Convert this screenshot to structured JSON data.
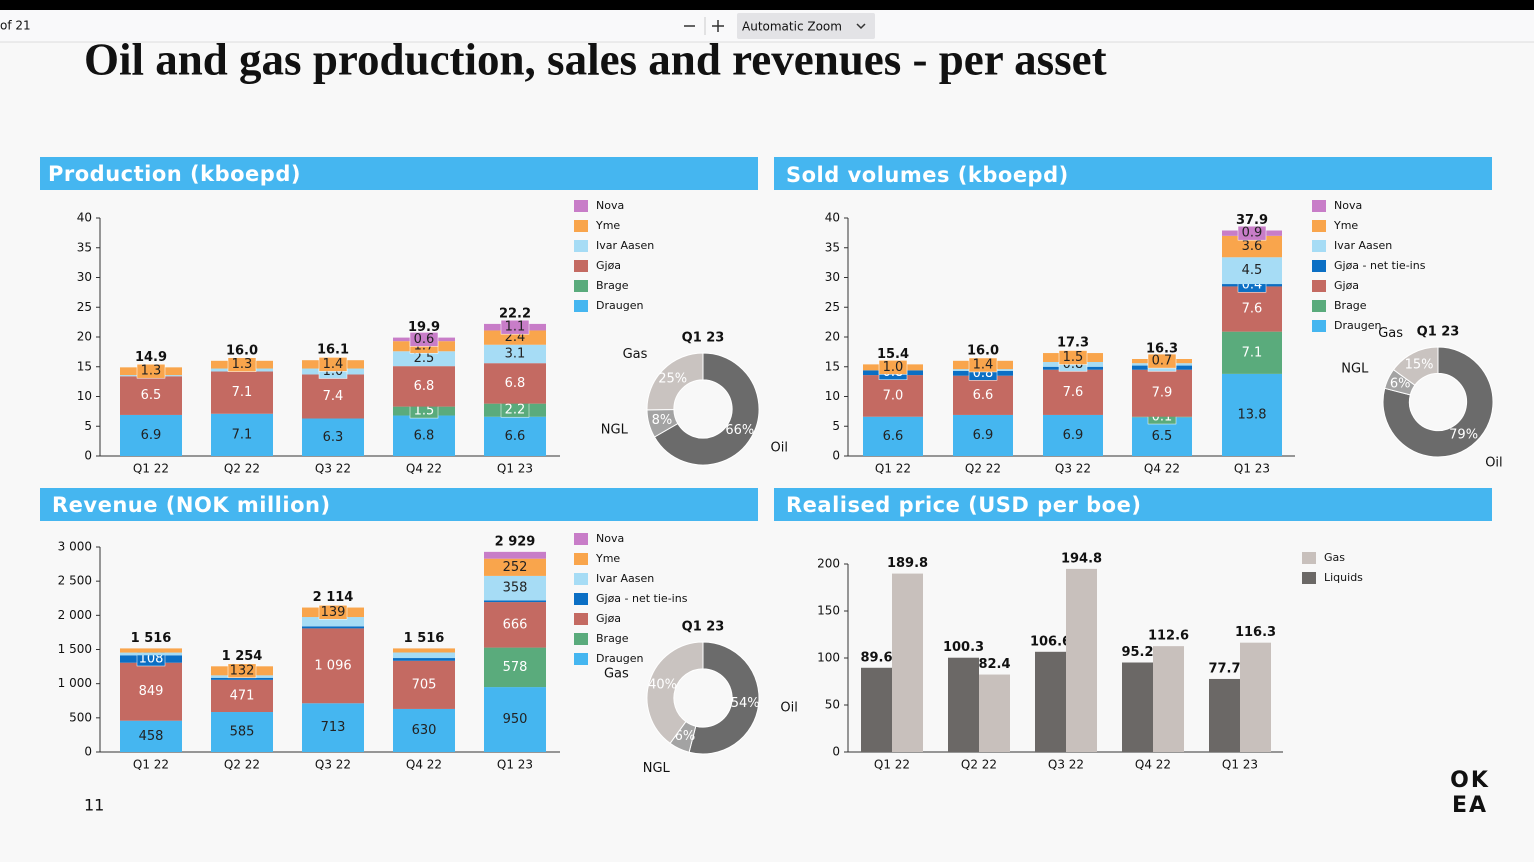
{
  "toolbar": {
    "page_of": "of 21",
    "zoom": "Automatic Zoom"
  },
  "slide": {
    "title": "Oil and gas production, sales and revenues - per asset",
    "page_number": "11",
    "logo_top": "OK",
    "logo_bottom": "EA"
  },
  "chart_data": [
    {
      "type": "stacked_bar",
      "title": "Production (kboepd)",
      "categories": [
        "Q1 22",
        "Q2 22",
        "Q3 22",
        "Q4 22",
        "Q1 23"
      ],
      "ylim": [
        0,
        40
      ],
      "yticks": [
        0,
        5,
        10,
        15,
        20,
        25,
        30,
        35,
        40
      ],
      "series": [
        {
          "name": "Draugen",
          "color": "#45b6f0",
          "values": [
            6.9,
            7.1,
            6.3,
            6.8,
            6.6
          ],
          "value_labels": [
            "6.9",
            "7.1",
            "6.3",
            "6.8",
            "6.6"
          ]
        },
        {
          "name": "Brage",
          "color": "#5aab7c",
          "values": [
            0,
            0,
            0,
            1.5,
            2.2
          ],
          "value_labels": [
            null,
            null,
            null,
            "1.5",
            "2.2"
          ]
        },
        {
          "name": "Gjøa",
          "color": "#c46a62",
          "values": [
            6.5,
            7.1,
            7.4,
            6.8,
            6.8
          ],
          "value_labels": [
            "6.5",
            "7.1",
            "7.4",
            "6.8",
            "6.8"
          ]
        },
        {
          "name": "Ivar Aasen",
          "color": "#a6dcf5",
          "values": [
            0.2,
            0.5,
            1.0,
            2.5,
            3.1
          ],
          "value_labels": [
            null,
            null,
            "1.0",
            "2.5",
            "3.1"
          ]
        },
        {
          "name": "Yme",
          "color": "#f9a54c",
          "values": [
            1.3,
            1.3,
            1.4,
            1.7,
            2.4
          ],
          "value_labels": [
            "1.3",
            "1.3",
            "1.4",
            "1.7",
            "2.4"
          ]
        },
        {
          "name": "Nova",
          "color": "#c87dc8",
          "values": [
            0,
            0,
            0,
            0.6,
            1.1
          ],
          "value_labels": [
            null,
            null,
            null,
            "0.6",
            "1.1"
          ]
        }
      ],
      "totals": [
        14.9,
        16.0,
        16.1,
        19.9,
        22.2
      ],
      "total_labels": [
        "14.9",
        "16.0",
        "16.1",
        "19.9",
        "22.2"
      ]
    },
    {
      "type": "pie",
      "title": "Q1 23",
      "categories": [
        "Oil",
        "NGL",
        "Gas"
      ],
      "values": [
        66,
        8,
        25
      ],
      "value_labels": [
        "66%",
        "8%",
        "25%"
      ],
      "colors": [
        "#6b6b6b",
        "#a3a3a3",
        "#c9c3c0"
      ]
    },
    {
      "type": "stacked_bar",
      "title": "Sold volumes (kboepd)",
      "categories": [
        "Q1 22",
        "Q2 22",
        "Q3 22",
        "Q4 22",
        "Q1 23"
      ],
      "ylim": [
        0,
        40
      ],
      "yticks": [
        0,
        5,
        10,
        15,
        20,
        25,
        30,
        35,
        40
      ],
      "series": [
        {
          "name": "Draugen",
          "color": "#45b6f0",
          "values": [
            6.6,
            6.9,
            6.9,
            6.5,
            13.8
          ],
          "value_labels": [
            "6.6",
            "6.9",
            "6.9",
            "6.5",
            "13.8"
          ]
        },
        {
          "name": "Brage",
          "color": "#5aab7c",
          "values": [
            0,
            0,
            0,
            0.1,
            7.1
          ],
          "value_labels": [
            null,
            null,
            null,
            "0.1",
            "7.1"
          ]
        },
        {
          "name": "Gjøa",
          "color": "#c46a62",
          "values": [
            7.0,
            6.6,
            7.6,
            7.9,
            7.6
          ],
          "value_labels": [
            "7.0",
            "6.6",
            "7.6",
            "7.9",
            "7.6"
          ]
        },
        {
          "name": "Gjøa - net tie-ins",
          "color": "#0b6fc4",
          "values": [
            0.8,
            0.8,
            0.5,
            0.7,
            0.4
          ],
          "value_labels": [
            "0.8",
            "0.8",
            null,
            null,
            "0.4"
          ]
        },
        {
          "name": "Ivar Aasen",
          "color": "#a6dcf5",
          "values": [
            0,
            0.3,
            0.8,
            0.4,
            4.5
          ],
          "value_labels": [
            null,
            null,
            "0.8",
            "0.4",
            "4.5"
          ]
        },
        {
          "name": "Yme",
          "color": "#f9a54c",
          "values": [
            1.0,
            1.4,
            1.5,
            0.7,
            3.6
          ],
          "value_labels": [
            "1.0",
            "1.4",
            "1.5",
            "0.7",
            "3.6"
          ]
        },
        {
          "name": "Nova",
          "color": "#c87dc8",
          "values": [
            0,
            0,
            0,
            0,
            0.9
          ],
          "value_labels": [
            null,
            null,
            null,
            null,
            "0.9"
          ]
        }
      ],
      "totals": [
        15.4,
        16.0,
        17.3,
        16.3,
        37.9
      ],
      "total_labels": [
        "15.4",
        "16.0",
        "17.3",
        "16.3",
        "37.9"
      ]
    },
    {
      "type": "pie",
      "title": "Q1 23",
      "categories": [
        "Oil",
        "NGL",
        "Gas"
      ],
      "values": [
        79,
        6,
        15
      ],
      "value_labels": [
        "79%",
        "6%",
        "15%"
      ],
      "colors": [
        "#6b6b6b",
        "#a3a3a3",
        "#c9c3c0"
      ]
    },
    {
      "type": "stacked_bar",
      "title": "Revenue (NOK million)",
      "categories": [
        "Q1 22",
        "Q2 22",
        "Q3 22",
        "Q4 22",
        "Q1 23"
      ],
      "ylim": [
        0,
        3000
      ],
      "yticks": [
        0,
        500,
        {
          "value": 1000,
          "label": "1 000"
        },
        {
          "value": 1500,
          "label": "1 500"
        },
        {
          "value": 2000,
          "label": "2 000"
        },
        {
          "value": 2500,
          "label": "2 500"
        },
        {
          "value": 3000,
          "label": "3 000"
        }
      ],
      "series": [
        {
          "name": "Draugen",
          "color": "#45b6f0",
          "values": [
            458,
            585,
            713,
            630,
            950
          ],
          "value_labels": [
            "458",
            "585",
            "713",
            "630",
            "950"
          ]
        },
        {
          "name": "Brage",
          "color": "#5aab7c",
          "values": [
            0,
            0,
            0,
            0,
            578
          ],
          "value_labels": [
            null,
            null,
            null,
            null,
            "578"
          ]
        },
        {
          "name": "Gjøa",
          "color": "#c46a62",
          "values": [
            849,
            471,
            1096,
            705,
            666
          ],
          "value_labels": [
            "849",
            "471",
            "1 096",
            "705",
            "666"
          ]
        },
        {
          "name": "Gjøa - net tie-ins",
          "color": "#0b6fc4",
          "values": [
            108,
            30,
            30,
            40,
            25
          ],
          "value_labels": [
            "108",
            null,
            null,
            null,
            null
          ]
        },
        {
          "name": "Ivar Aasen",
          "color": "#a6dcf5",
          "values": [
            40,
            36,
            136,
            81,
            358
          ],
          "value_labels": [
            null,
            null,
            null,
            null,
            "358"
          ]
        },
        {
          "name": "Yme",
          "color": "#f9a54c",
          "values": [
            61,
            132,
            139,
            60,
            252
          ],
          "value_labels": [
            null,
            "132",
            "139",
            null,
            "252"
          ]
        },
        {
          "name": "Nova",
          "color": "#c87dc8",
          "values": [
            0,
            0,
            0,
            0,
            100
          ],
          "value_labels": [
            null,
            null,
            null,
            null,
            null
          ]
        }
      ],
      "totals": [
        1516,
        1254,
        2114,
        1516,
        2929
      ],
      "total_labels": [
        "1 516",
        "1 254",
        "2 114",
        "1 516",
        "2 929"
      ]
    },
    {
      "type": "pie",
      "title": "Q1 23",
      "categories": [
        "Oil",
        "NGL",
        "Gas"
      ],
      "values": [
        54,
        6,
        40
      ],
      "value_labels": [
        "54%",
        "6%",
        "40%"
      ],
      "colors": [
        "#6b6b6b",
        "#a3a3a3",
        "#c9c3c0"
      ]
    },
    {
      "type": "grouped_bar",
      "title": "Realised price (USD per boe)",
      "categories": [
        "Q1 22",
        "Q2 22",
        "Q3 22",
        "Q4 22",
        "Q1 23"
      ],
      "ylim": [
        0,
        200
      ],
      "yticks": [
        0,
        50,
        100,
        150,
        200
      ],
      "series": [
        {
          "name": "Liquids",
          "color": "#6b6866",
          "values": [
            89.6,
            100.3,
            106.6,
            95.2,
            77.7
          ]
        },
        {
          "name": "Gas",
          "color": "#c8c0bc",
          "values": [
            189.8,
            82.4,
            194.8,
            112.6,
            116.3
          ]
        }
      ]
    }
  ]
}
